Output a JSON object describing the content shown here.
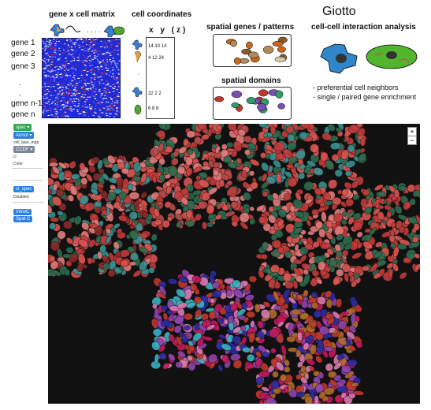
{
  "header": {
    "matrix_title": "gene x cell matrix",
    "coords_title": "cell coordinates",
    "giotto_title": "Giotto",
    "spatial_genes_title": "spatial genes / patterns",
    "domains_title": "spatial domains",
    "interaction_title": "cell-cell interaction analysis",
    "bullets": [
      "- preferential cell neighbors",
      "- single / paired gene enrichment"
    ],
    "gene_labels": [
      "gene 1",
      "gene 2",
      "gene 3",
      ".",
      ".",
      "gene n-1",
      "gene n"
    ],
    "coord_axes": "x  y  (z)",
    "coord_rows": [
      "14  10  14",
      "4   12  24",
      "22  2   2",
      "6   8   8"
    ],
    "matrix_dots": ". . . ."
  },
  "sidebar": {
    "select_label": "spec",
    "annot_label": "Annot",
    "cell_group_label": "cell_type_map",
    "dropdown_value": "CCDF",
    "checkbox_label": "cl",
    "color_label": "Color",
    "btn_a": "cl_spec",
    "status": "Disabled",
    "btn_b": "ViewC",
    "btn_c": "Spat C"
  },
  "viewer": {
    "zoom_in": "+",
    "zoom_out": "−"
  },
  "colors": {
    "viewer_bg": "#111111",
    "accent_green": "#2fa84f",
    "accent_blue": "#2d7fe0"
  }
}
